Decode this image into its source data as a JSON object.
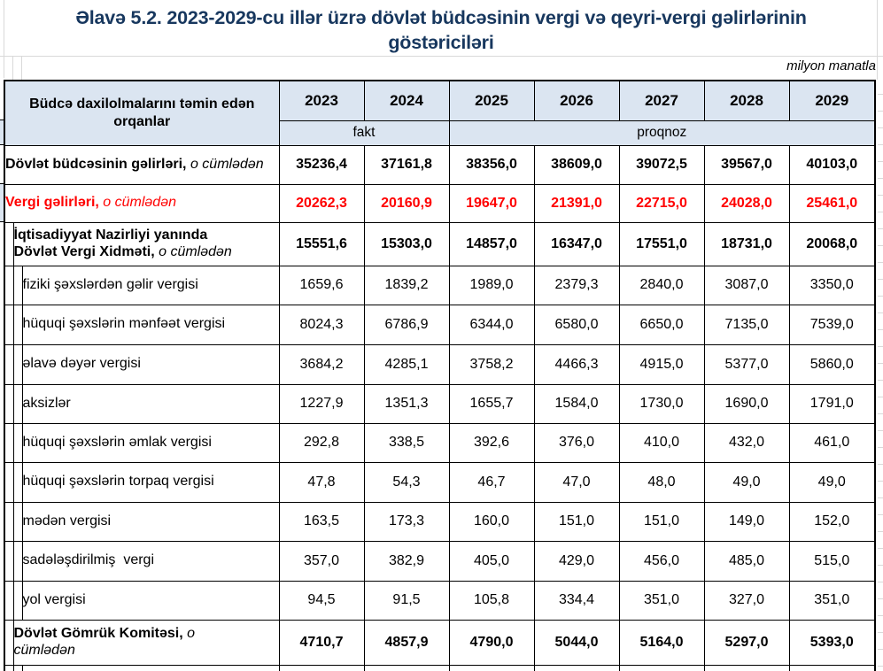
{
  "title": "Əlavə 5.2. 2023-2029-cu illər üzrə dövlət büdcəsinin vergi və qeyri-vergi gəlirlərinin göstəriciləri",
  "unit_note": "milyon manatla",
  "colors": {
    "title_text": "#17375e",
    "header_fill": "#dbe5f1",
    "tax_row_text": "#ff0000",
    "border": "#000000",
    "gridline": "#d9d9d9"
  },
  "table": {
    "org_header": "Büdcə daxilolmalarını təmin edən orqanlar",
    "years": [
      "2023",
      "2024",
      "2025",
      "2026",
      "2027",
      "2028",
      "2029"
    ],
    "fact_label": "fakt",
    "forecast_label": "proqnoz",
    "rows": [
      {
        "label_main": "Dövlət büdcəsinin gəlirləri,",
        "label_suffix": "o cümlədən",
        "indent": 0,
        "bold": true,
        "color": "black",
        "values": [
          "35236,4",
          "37161,8",
          "38356,0",
          "38609,0",
          "39072,5",
          "39567,0",
          "40103,0"
        ]
      },
      {
        "label_main": "Vergi gəlirləri,",
        "label_suffix": "o cümlədən",
        "indent": 0,
        "bold": true,
        "color": "red",
        "values": [
          "20262,3",
          "20160,9",
          "19647,0",
          "21391,0",
          "22715,0",
          "24028,0",
          "25461,0"
        ]
      },
      {
        "label_main": "İqtisadiyyat Nazirliyi yanında Dövlət Vergi Xidməti,",
        "label_suffix": "o cümlədən",
        "indent": 1,
        "bold": true,
        "color": "black",
        "values": [
          "15551,6",
          "15303,0",
          "14857,0",
          "16347,0",
          "17551,0",
          "18731,0",
          "20068,0"
        ]
      },
      {
        "label_main": "fiziki şəxslərdən gəlir vergisi",
        "label_suffix": "",
        "indent": 2,
        "bold": false,
        "color": "black",
        "values": [
          "1659,6",
          "1839,2",
          "1989,0",
          "2379,3",
          "2840,0",
          "3087,0",
          "3350,0"
        ]
      },
      {
        "label_main": "hüquqi şəxslərin mənfəət vergisi",
        "label_suffix": "",
        "indent": 2,
        "bold": false,
        "color": "black",
        "values": [
          "8024,3",
          "6786,9",
          "6344,0",
          "6580,0",
          "6650,0",
          "7135,0",
          "7539,0"
        ]
      },
      {
        "label_main": "əlavə dəyər vergisi",
        "label_suffix": "",
        "indent": 2,
        "bold": false,
        "color": "black",
        "values": [
          "3684,2",
          "4285,1",
          "3758,2",
          "4466,3",
          "4915,0",
          "5377,0",
          "5860,0"
        ]
      },
      {
        "label_main": "aksizlər",
        "label_suffix": "",
        "indent": 2,
        "bold": false,
        "color": "black",
        "values": [
          "1227,9",
          "1351,3",
          "1655,7",
          "1584,0",
          "1730,0",
          "1690,0",
          "1791,0"
        ]
      },
      {
        "label_main": "hüquqi şəxslərin əmlak vergisi",
        "label_suffix": "",
        "indent": 2,
        "bold": false,
        "color": "black",
        "values": [
          "292,8",
          "338,5",
          "392,6",
          "376,0",
          "410,0",
          "432,0",
          "461,0"
        ]
      },
      {
        "label_main": "hüquqi şəxslərin torpaq vergisi",
        "label_suffix": "",
        "indent": 2,
        "bold": false,
        "color": "black",
        "values": [
          "47,8",
          "54,3",
          "46,7",
          "47,0",
          "48,0",
          "49,0",
          "49,0"
        ]
      },
      {
        "label_main": "mədən vergisi",
        "label_suffix": "",
        "indent": 2,
        "bold": false,
        "color": "black",
        "values": [
          "163,5",
          "173,3",
          "160,0",
          "151,0",
          "151,0",
          "149,0",
          "152,0"
        ]
      },
      {
        "label_main": "sadələşdirilmiş  vergi",
        "label_suffix": "",
        "indent": 2,
        "bold": false,
        "color": "black",
        "values": [
          "357,0",
          "382,9",
          "405,0",
          "429,0",
          "456,0",
          "485,0",
          "515,0"
        ]
      },
      {
        "label_main": "yol vergisi",
        "label_suffix": "",
        "indent": 2,
        "bold": false,
        "color": "black",
        "values": [
          "94,5",
          "91,5",
          "105,8",
          "334,4",
          "351,0",
          "327,0",
          "351,0"
        ]
      },
      {
        "label_main": "Dövlət Gömrük Komitəsi,",
        "label_suffix": "o cümlədən",
        "indent": 1,
        "bold": true,
        "color": "black",
        "values": [
          "4710,7",
          "4857,9",
          "4790,0",
          "5044,0",
          "5164,0",
          "5297,0",
          "5393,0"
        ]
      }
    ]
  }
}
